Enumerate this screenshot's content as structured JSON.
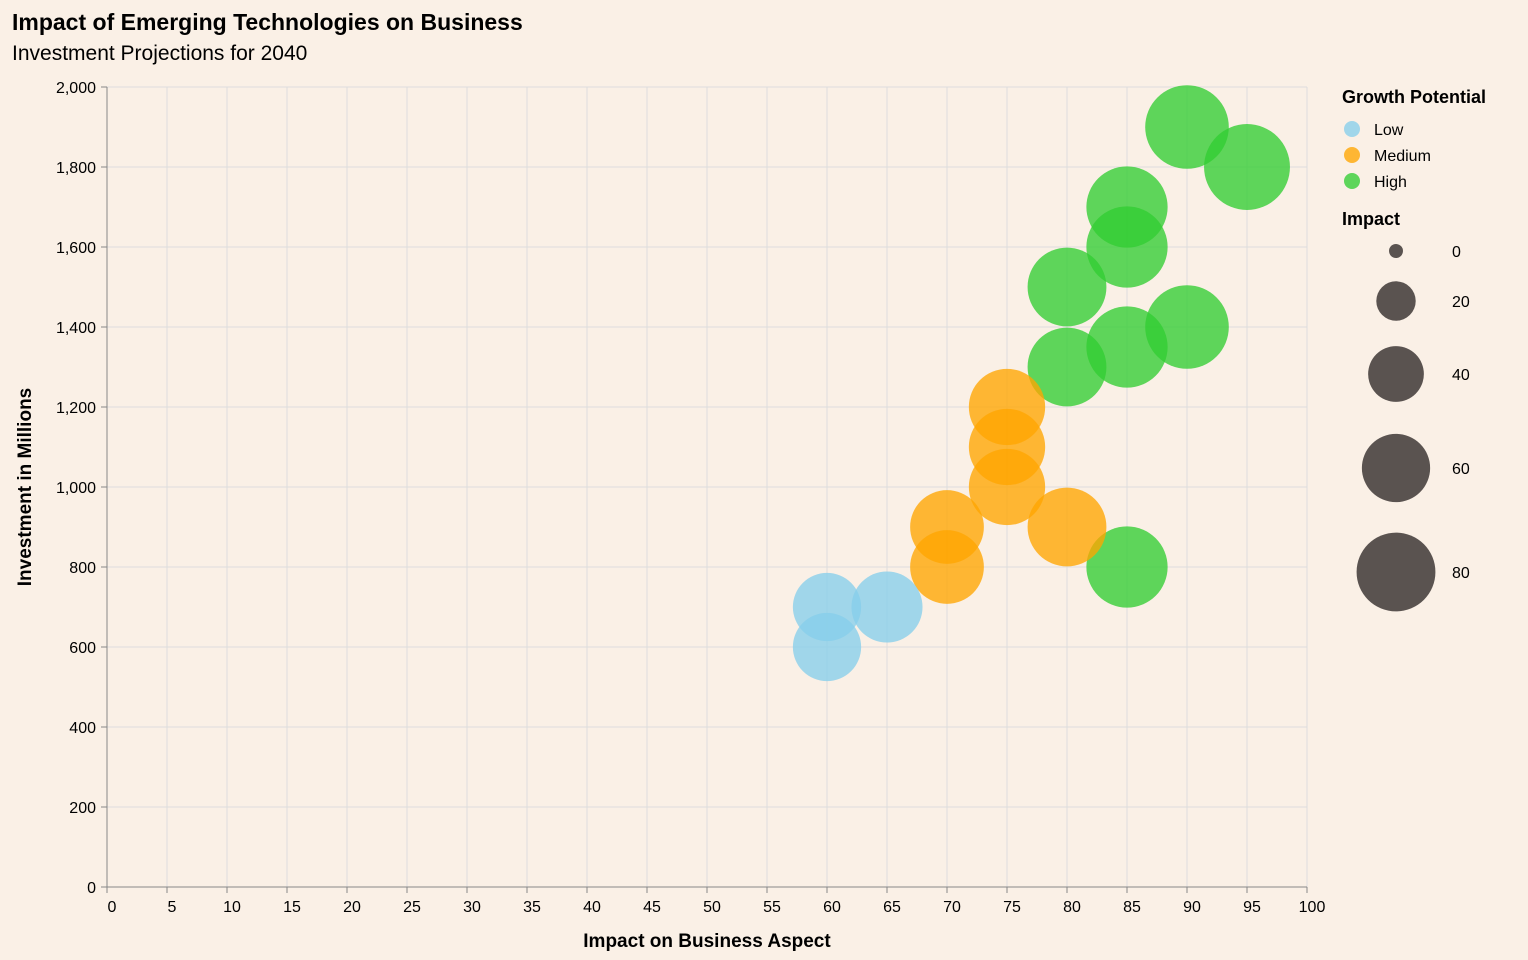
{
  "chart_data": {
    "type": "scatter",
    "title": "Impact of Emerging Technologies on Business",
    "subtitle": "Investment Projections for 2040",
    "xlabel": "Impact on Business Aspect",
    "ylabel": "Investment in Millions",
    "xlim": [
      0,
      100
    ],
    "ylim": [
      0,
      2000
    ],
    "x_ticks": [
      0,
      5,
      10,
      15,
      20,
      25,
      30,
      35,
      40,
      45,
      50,
      55,
      60,
      65,
      70,
      75,
      80,
      85,
      90,
      95,
      100
    ],
    "x_tick_labels": [
      "0",
      "5",
      "10",
      "15",
      "20",
      "25",
      "30",
      "35",
      "40",
      "45",
      "50",
      "55",
      "60",
      "65",
      "70",
      "75",
      "80",
      "85",
      "90",
      "95",
      "100"
    ],
    "y_ticks": [
      0,
      200,
      400,
      600,
      800,
      1000,
      1200,
      1400,
      1600,
      1800,
      2000
    ],
    "y_tick_labels": [
      "0",
      "200",
      "400",
      "600",
      "800",
      "1,000",
      "1,200",
      "1,400",
      "1,600",
      "1,800",
      "2,000"
    ],
    "grid": true,
    "legend_placement": "right",
    "color_legend": {
      "title": "Growth Potential",
      "items": [
        {
          "label": "Low",
          "color": "#87ceeb"
        },
        {
          "label": "Medium",
          "color": "#ffa500"
        },
        {
          "label": "High",
          "color": "#32cd32"
        }
      ]
    },
    "size_legend": {
      "title": "Impact",
      "values": [
        0,
        20,
        40,
        60,
        80
      ],
      "labels": [
        "0",
        "20",
        "40",
        "60",
        "80"
      ],
      "color": "#5a5350"
    },
    "points": [
      {
        "x": 90,
        "y": 1900,
        "size": 90,
        "growth": "High"
      },
      {
        "x": 95,
        "y": 1800,
        "size": 95,
        "growth": "High"
      },
      {
        "x": 85,
        "y": 1700,
        "size": 85,
        "growth": "High"
      },
      {
        "x": 85,
        "y": 1600,
        "size": 85,
        "growth": "High"
      },
      {
        "x": 80,
        "y": 1500,
        "size": 80,
        "growth": "High"
      },
      {
        "x": 90,
        "y": 1400,
        "size": 90,
        "growth": "High"
      },
      {
        "x": 85,
        "y": 1350,
        "size": 85,
        "growth": "High"
      },
      {
        "x": 80,
        "y": 1300,
        "size": 80,
        "growth": "High"
      },
      {
        "x": 85,
        "y": 800,
        "size": 85,
        "growth": "High"
      },
      {
        "x": 75,
        "y": 1200,
        "size": 75,
        "growth": "Medium"
      },
      {
        "x": 75,
        "y": 1100,
        "size": 75,
        "growth": "Medium"
      },
      {
        "x": 75,
        "y": 1000,
        "size": 75,
        "growth": "Medium"
      },
      {
        "x": 70,
        "y": 900,
        "size": 70,
        "growth": "Medium"
      },
      {
        "x": 80,
        "y": 900,
        "size": 80,
        "growth": "Medium"
      },
      {
        "x": 70,
        "y": 800,
        "size": 70,
        "growth": "Medium"
      },
      {
        "x": 60,
        "y": 700,
        "size": 60,
        "growth": "Low"
      },
      {
        "x": 65,
        "y": 700,
        "size": 65,
        "growth": "Low"
      },
      {
        "x": 60,
        "y": 600,
        "size": 60,
        "growth": "Low"
      }
    ]
  }
}
